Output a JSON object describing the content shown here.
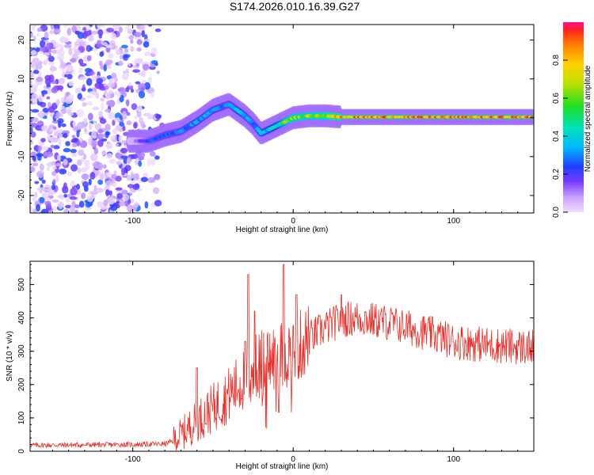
{
  "title": "S174.2026.010.16.39.G27",
  "chart_data": [
    {
      "type": "heatmap",
      "title": "S174.2026.010.16.39.G27",
      "xlabel": "Height of straight line (km)",
      "ylabel": "Frequency (Hz)",
      "xlim": [
        -164,
        150
      ],
      "ylim": [
        -24.5,
        24
      ],
      "xticks": [
        -100,
        0,
        100
      ],
      "yticks": [
        -20,
        -10,
        0,
        10,
        20
      ],
      "colorbar": {
        "label": "Normalized spectral amplitude",
        "ticks": [
          0.0,
          0.2,
          0.4,
          0.6,
          0.8
        ],
        "range": [
          0,
          1
        ]
      },
      "noise_region_x": [
        -164,
        -80
      ],
      "ridge": {
        "x": [
          -100,
          -90,
          -80,
          -70,
          -60,
          -50,
          -40,
          -35,
          -30,
          -25,
          -20,
          -15,
          -10,
          -5,
          0,
          10,
          20,
          30,
          50,
          80,
          100,
          120,
          150
        ],
        "frequency": [
          -6,
          -6,
          -4.5,
          -3.5,
          -1,
          2,
          3.5,
          2,
          0.5,
          -1.5,
          -4,
          -3,
          -2,
          -1,
          0,
          0.5,
          0.5,
          0.2,
          0.2,
          0.2,
          0.2,
          0.2,
          0.2
        ],
        "amplitude": [
          0.1,
          0.25,
          0.3,
          0.3,
          0.35,
          0.35,
          0.3,
          0.4,
          0.35,
          0.3,
          0.4,
          0.4,
          0.45,
          0.6,
          0.7,
          0.7,
          0.75,
          0.85,
          0.9,
          0.9,
          0.9,
          0.9,
          0.9
        ]
      }
    },
    {
      "type": "line",
      "xlabel": "Height of straight line (km)",
      "ylabel": "SNR (10 * v/v)",
      "xlim": [
        -164,
        150
      ],
      "ylim": [
        0,
        570
      ],
      "xticks": [
        -100,
        0,
        100
      ],
      "yticks": [
        0,
        100,
        200,
        300,
        400,
        500
      ],
      "series": [
        {
          "name": "SNR",
          "color": "#e8302a",
          "trend_x": [
            -164,
            -100,
            -80,
            -75,
            -70,
            -60,
            -50,
            -40,
            -30,
            -20,
            -10,
            0,
            10,
            20,
            30,
            40,
            60,
            80,
            100,
            120,
            150
          ],
          "trend_y": [
            18,
            20,
            22,
            30,
            50,
            90,
            130,
            170,
            220,
            260,
            280,
            300,
            340,
            370,
            395,
            400,
            385,
            360,
            330,
            320,
            310
          ],
          "spikes_x": [
            -60,
            -30,
            -28,
            -24,
            -6,
            2,
            30
          ],
          "spikes_y": [
            250,
            330,
            530,
            420,
            560,
            470,
            470
          ]
        }
      ]
    }
  ],
  "colors": {
    "snr_line": "#e8302a",
    "axis": "#000000"
  }
}
